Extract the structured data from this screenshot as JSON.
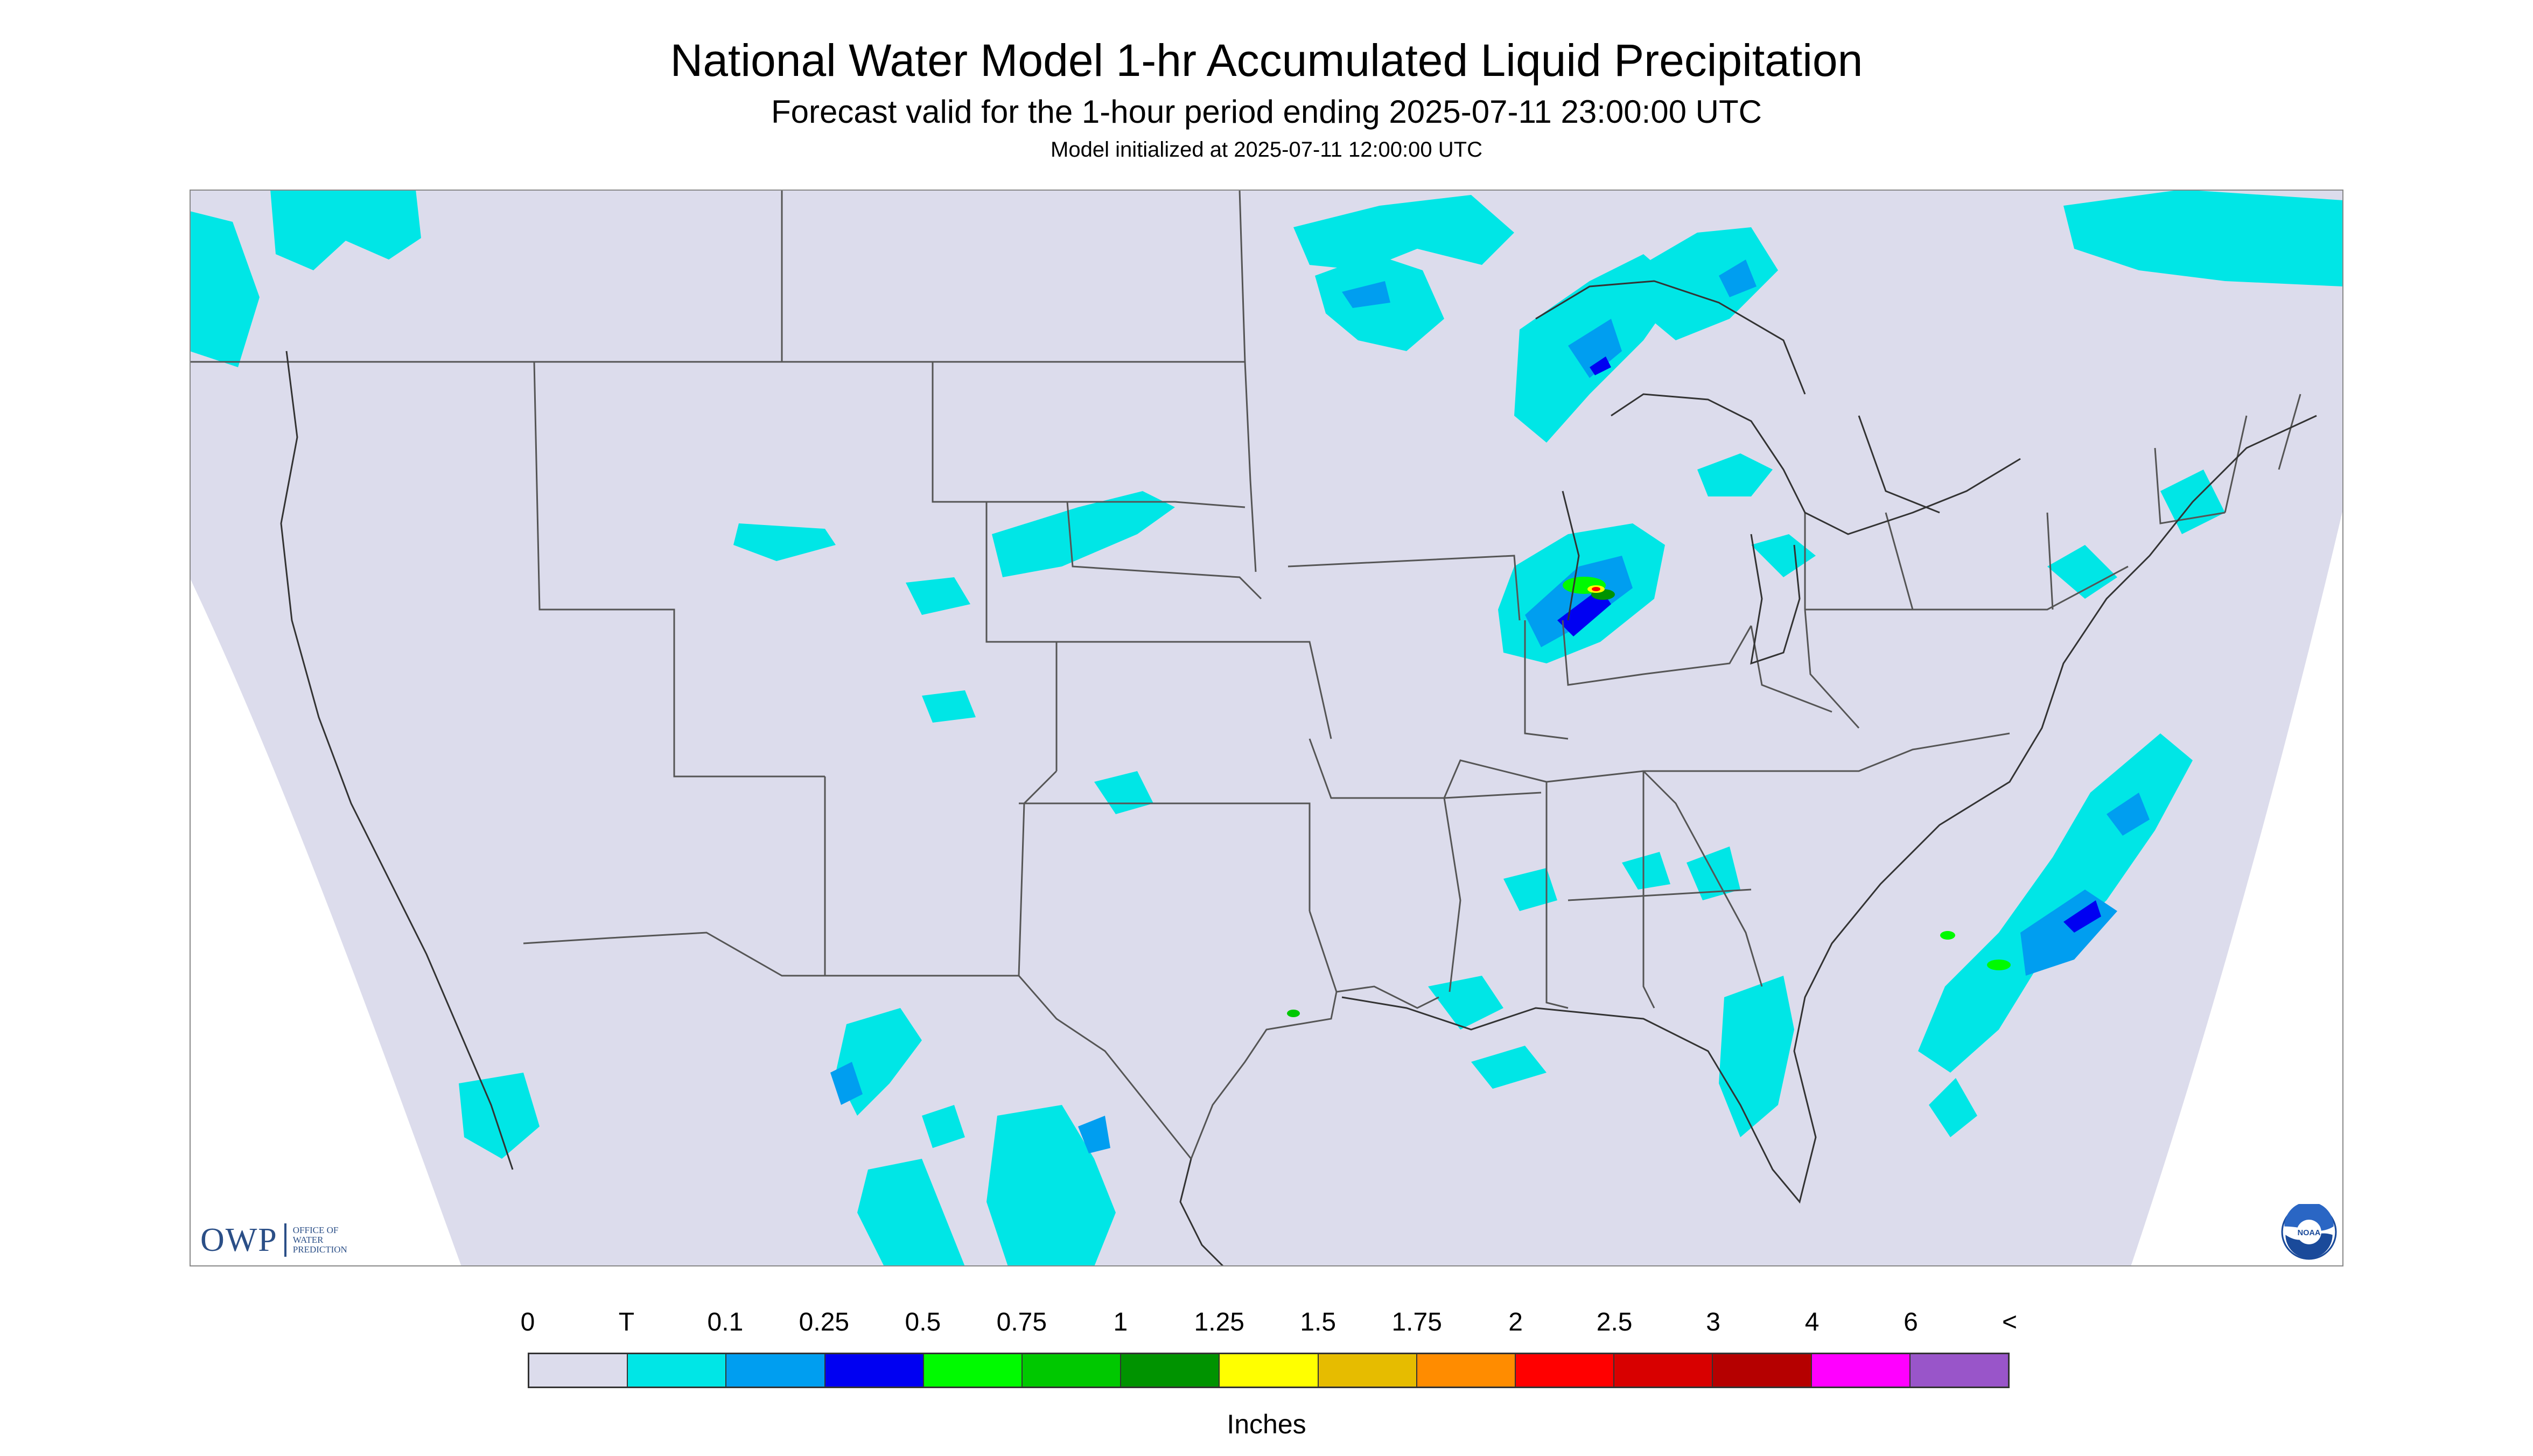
{
  "header": {
    "title": "National Water Model 1-hr Accumulated Liquid Precipitation",
    "subtitle": "Forecast valid for the 1-hour period ending 2025-07-11 23:00:00 UTC",
    "init": "Model initialized at 2025-07-11 12:00:00 UTC"
  },
  "legend": {
    "labels": [
      "0",
      "T",
      "0.1",
      "0.25",
      "0.5",
      "0.75",
      "1",
      "1.25",
      "1.5",
      "1.75",
      "2",
      "2.5",
      "3",
      "4",
      "6",
      "<"
    ],
    "colors": [
      "#dcdcec",
      "#00e6e6",
      "#009ef0",
      "#0000f2",
      "#00fa00",
      "#00c800",
      "#009300",
      "#ffff00",
      "#e6bc00",
      "#ff8c00",
      "#ff0000",
      "#d80000",
      "#b50000",
      "#ff00ff",
      "#9955c9"
    ],
    "units": "Inches"
  },
  "logos": {
    "owp_big": "OWP",
    "owp_small": "OFFICE OF\nWATER\nPREDICTION",
    "noaa": "NOAA"
  },
  "map": {
    "background": "#dcdcec",
    "outside": "#ffffff",
    "border_color": "#555555"
  }
}
